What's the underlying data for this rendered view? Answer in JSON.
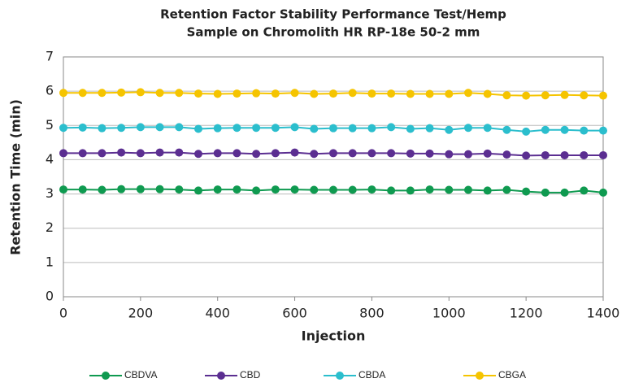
{
  "chart_data": {
    "type": "line",
    "title": [
      "Retention Factor Stability Performance Test/Hemp",
      "Sample on Chromolith HR RP-18e 50-2 mm"
    ],
    "xlabel": "Injection",
    "ylabel": "Retention Time (min)",
    "x": [
      0,
      50,
      100,
      150,
      200,
      250,
      300,
      350,
      400,
      450,
      500,
      550,
      600,
      650,
      700,
      750,
      800,
      850,
      900,
      950,
      1000,
      1050,
      1100,
      1150,
      1200,
      1250,
      1300,
      1350,
      1400
    ],
    "xlim": [
      0,
      1400
    ],
    "xticks": [
      0,
      200,
      400,
      600,
      800,
      1000,
      1200,
      1400
    ],
    "ylim": [
      0,
      7
    ],
    "yticks": [
      0,
      1,
      2,
      3,
      4,
      5,
      6,
      7
    ],
    "grid": true,
    "legend": "bottom",
    "series": [
      {
        "name": "CBDVA",
        "color": "#0f9a50",
        "values": [
          3.13,
          3.13,
          3.12,
          3.14,
          3.14,
          3.14,
          3.13,
          3.1,
          3.13,
          3.13,
          3.1,
          3.13,
          3.13,
          3.12,
          3.12,
          3.12,
          3.13,
          3.1,
          3.1,
          3.13,
          3.12,
          3.12,
          3.1,
          3.12,
          3.07,
          3.04,
          3.04,
          3.1,
          3.04
        ]
      },
      {
        "name": "CBD",
        "color": "#5b2e91",
        "values": [
          4.19,
          4.19,
          4.19,
          4.21,
          4.19,
          4.21,
          4.21,
          4.17,
          4.19,
          4.19,
          4.17,
          4.19,
          4.21,
          4.17,
          4.19,
          4.19,
          4.19,
          4.19,
          4.18,
          4.18,
          4.16,
          4.16,
          4.18,
          4.15,
          4.12,
          4.13,
          4.13,
          4.13,
          4.13
        ]
      },
      {
        "name": "CBDA",
        "color": "#2bbecd",
        "values": [
          4.93,
          4.94,
          4.92,
          4.93,
          4.95,
          4.95,
          4.95,
          4.9,
          4.92,
          4.93,
          4.93,
          4.93,
          4.95,
          4.9,
          4.92,
          4.92,
          4.92,
          4.95,
          4.9,
          4.92,
          4.87,
          4.93,
          4.93,
          4.87,
          4.82,
          4.87,
          4.87,
          4.85,
          4.85
        ]
      },
      {
        "name": "CBGA",
        "color": "#f5c400",
        "values": [
          5.95,
          5.95,
          5.95,
          5.96,
          5.97,
          5.95,
          5.95,
          5.93,
          5.92,
          5.93,
          5.94,
          5.93,
          5.95,
          5.92,
          5.93,
          5.95,
          5.93,
          5.93,
          5.92,
          5.92,
          5.92,
          5.95,
          5.92,
          5.88,
          5.87,
          5.88,
          5.89,
          5.88,
          5.87
        ]
      }
    ]
  }
}
